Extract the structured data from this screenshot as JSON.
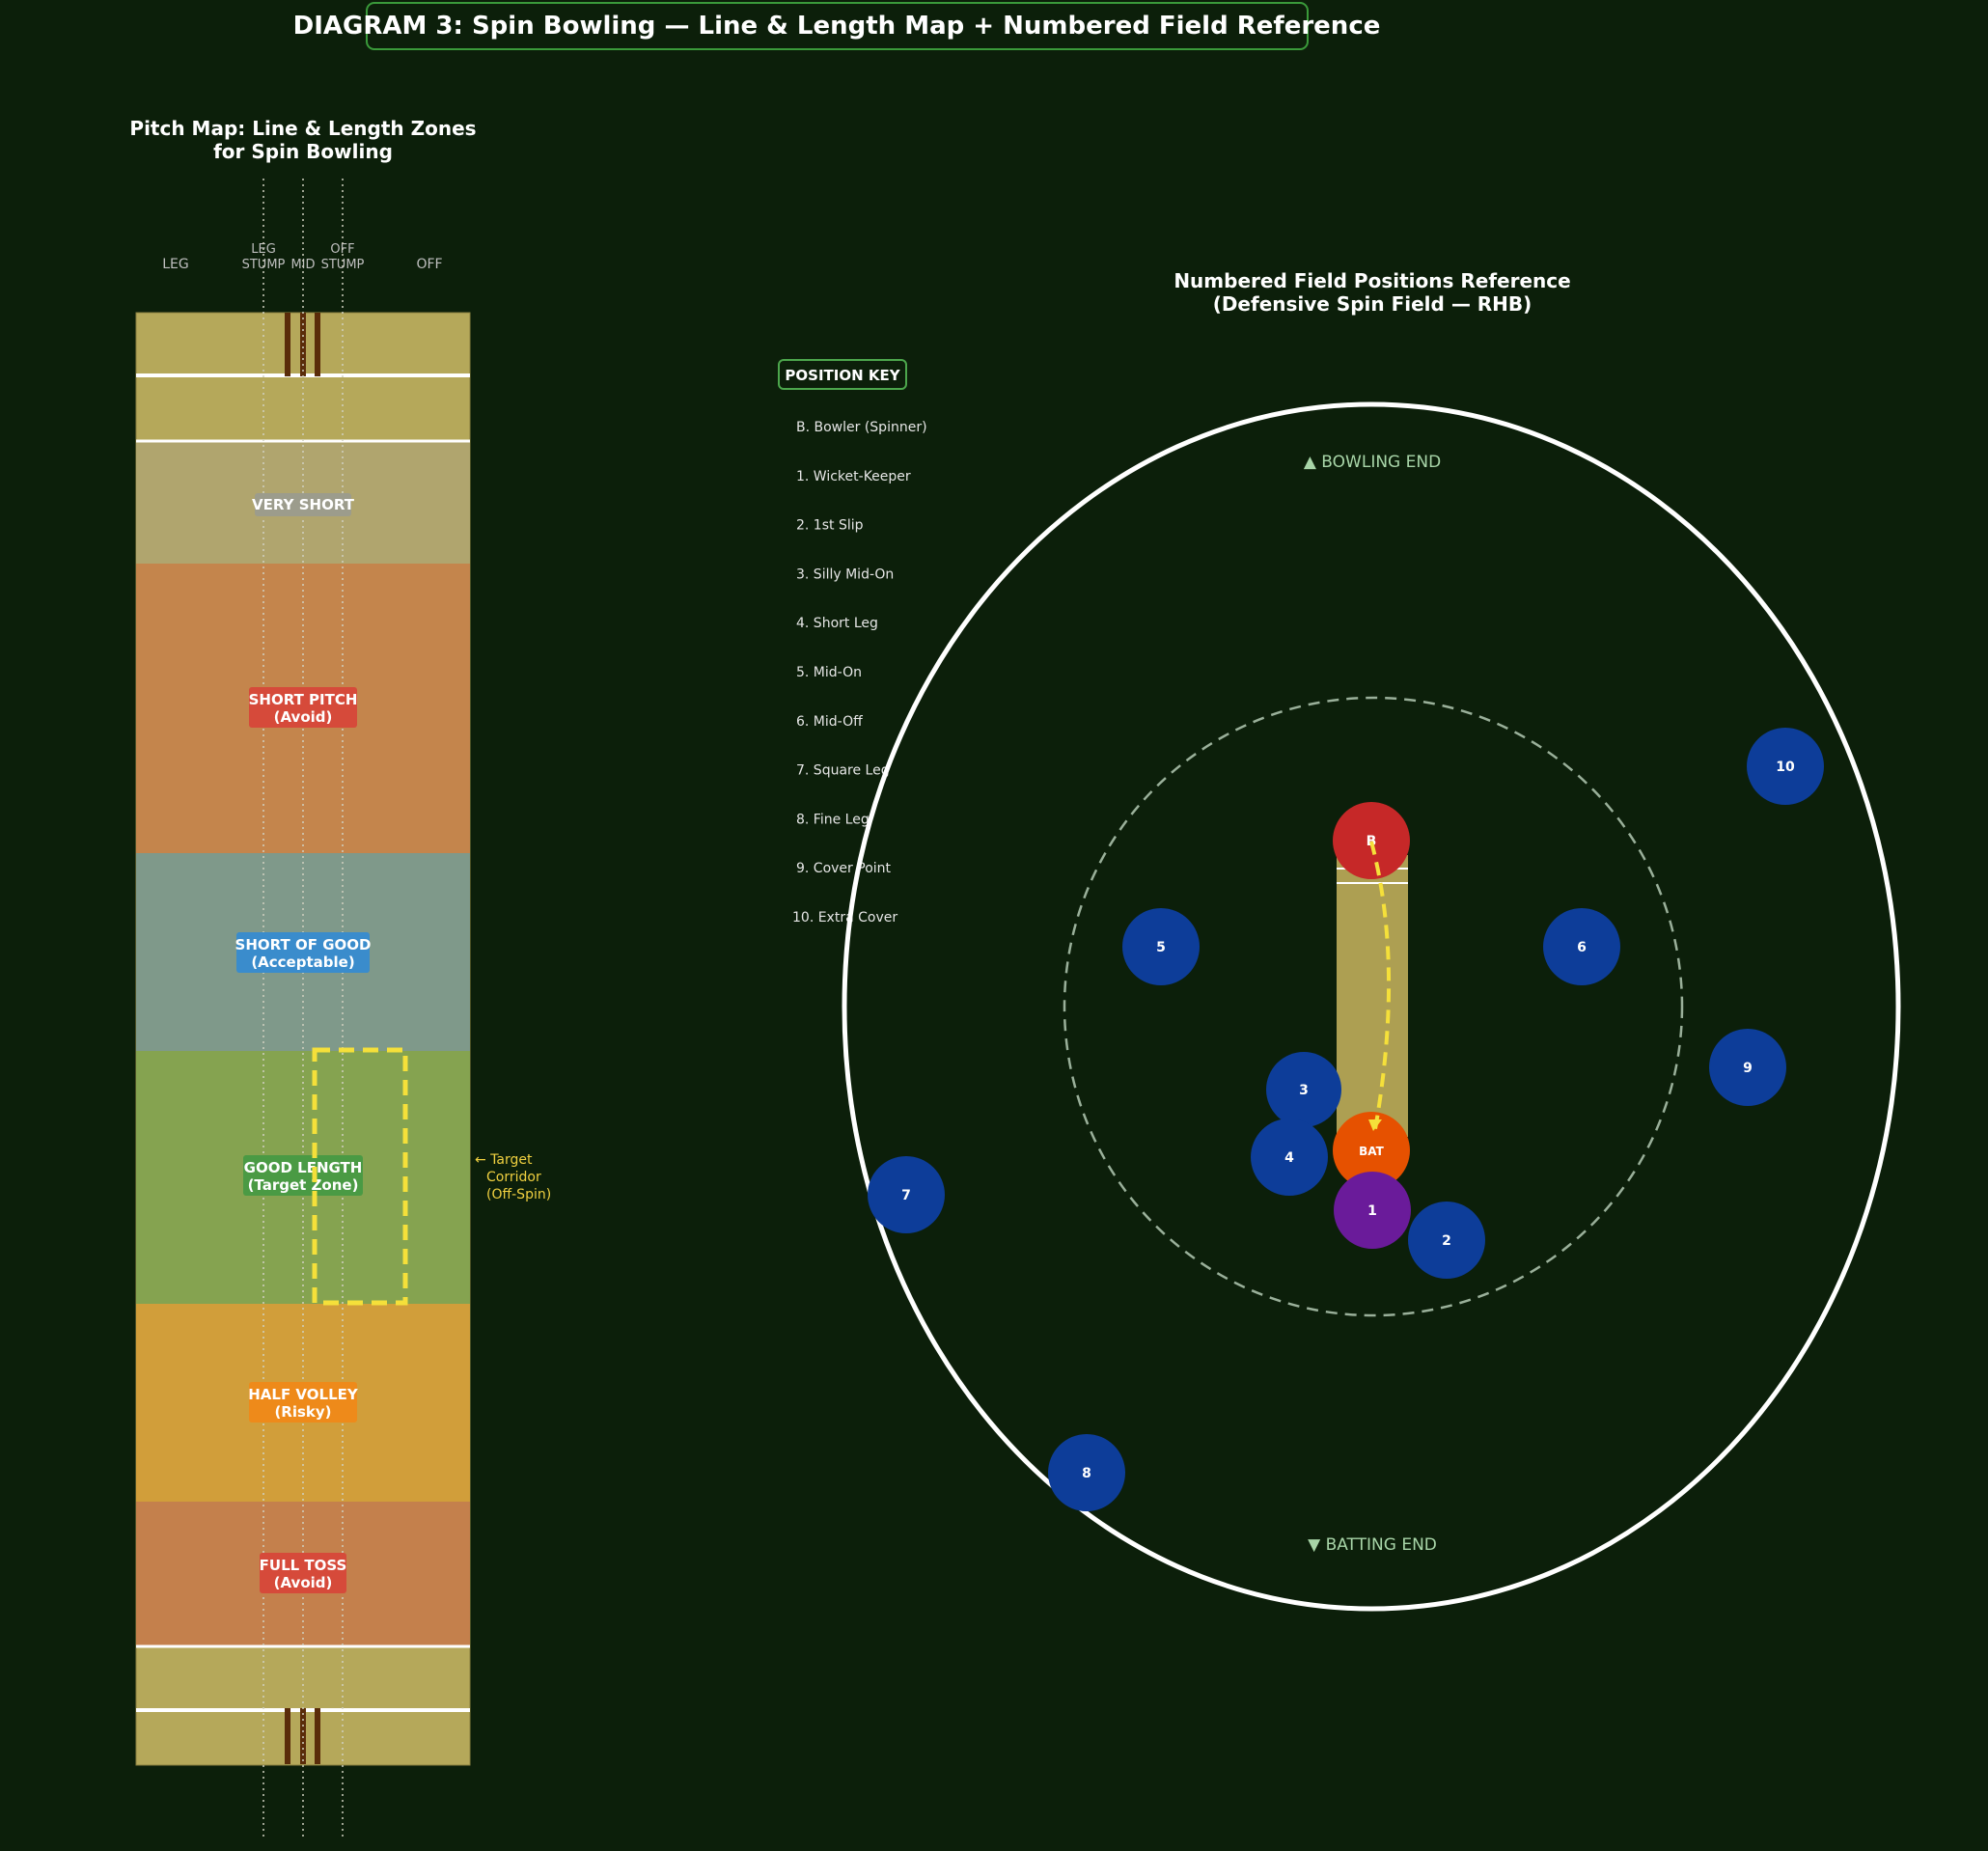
{
  "title": "DIAGRAM 3: Spin Bowling — Line & Length Map + Numbered Field Reference",
  "pitch_map": {
    "title_line1": "Pitch Map: Line & Length Zones",
    "title_line2": "for Spin Bowling",
    "line_labels": {
      "leg": "LEG",
      "leg_stump_1": "LEG",
      "leg_stump_2": "STUMP",
      "mid": "MID",
      "off_stump_1": "OFF",
      "off_stump_2": "STUMP",
      "off": "OFF"
    },
    "zones": [
      {
        "line1": "VERY SHORT",
        "line2": "",
        "fill": "#b0a56e",
        "badge": "#9c9c8c"
      },
      {
        "line1": "SHORT PITCH",
        "line2": "(Avoid)",
        "fill": "#c4854c",
        "badge": "#d64a3a"
      },
      {
        "line1": "SHORT OF GOOD",
        "line2": "(Acceptable)",
        "fill": "#7f998a",
        "badge": "#3a8ccc"
      },
      {
        "line1": "GOOD LENGTH",
        "line2": "(Target Zone)",
        "fill": "#85a350",
        "badge": "#4a9a44"
      },
      {
        "line1": "HALF VOLLEY",
        "line2": "(Risky)",
        "fill": "#d19e3a",
        "badge": "#ee8a1a"
      },
      {
        "line1": "FULL TOSS",
        "line2": "(Avoid)",
        "fill": "#c4804c",
        "badge": "#d64a3a"
      }
    ],
    "target_note": [
      "← Target",
      "Corridor",
      "(Off-Spin)"
    ]
  },
  "field": {
    "title_line1": "Numbered Field Positions Reference",
    "title_line2": "(Defensive Spin Field — RHB)",
    "bowling_end": "▲ BOWLING END",
    "batting_end": "▼ BATTING END",
    "key_title": "POSITION KEY",
    "key": [
      "B.  Bowler (Spinner)",
      "1.  Wicket-Keeper",
      "2.  1st Slip",
      "3.  Silly Mid-On",
      "4.  Short Leg",
      "5.  Mid-On",
      "6.  Mid-Off",
      "7.  Square Leg",
      "8.  Fine Leg",
      "9.  Cover Point",
      "10.  Extra Cover"
    ],
    "players": [
      {
        "label": "B",
        "kind": "bowler"
      },
      {
        "label": "BAT",
        "kind": "batter"
      },
      {
        "label": "1",
        "kind": "keeper"
      },
      {
        "label": "2",
        "kind": "fielder"
      },
      {
        "label": "3",
        "kind": "fielder"
      },
      {
        "label": "4",
        "kind": "fielder"
      },
      {
        "label": "5",
        "kind": "fielder"
      },
      {
        "label": "6",
        "kind": "fielder"
      },
      {
        "label": "7",
        "kind": "fielder"
      },
      {
        "label": "8",
        "kind": "fielder"
      },
      {
        "label": "9",
        "kind": "fielder"
      },
      {
        "label": "10",
        "kind": "fielder"
      }
    ],
    "colors": {
      "fielder": "#0d3d99",
      "bowler": "#c62828",
      "batter": "#e65100",
      "keeper": "#6a1b9a",
      "ball_path": "#f5e03a"
    }
  }
}
